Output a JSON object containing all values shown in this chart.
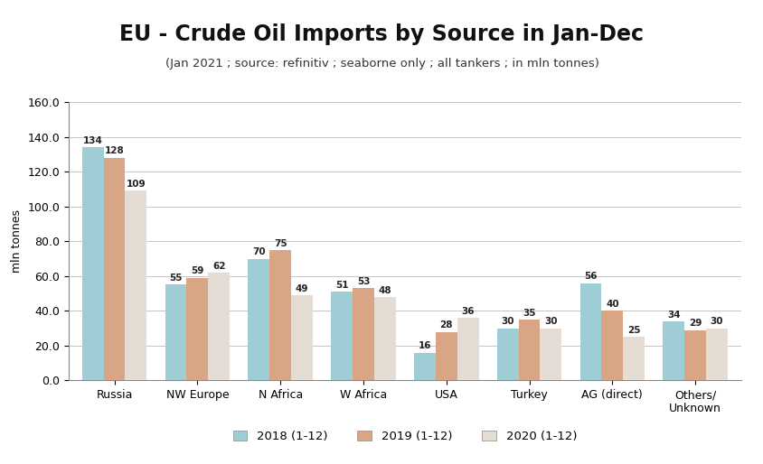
{
  "title": "EU - Crude Oil Imports by Source in Jan-Dec",
  "subtitle": "(Jan 2021 ; source: refinitiv ; seaborne only ; all tankers ; in mln tonnes)",
  "ylabel": "mln tonnes",
  "categories": [
    "Russia",
    "NW Europe",
    "N Africa",
    "W Africa",
    "USA",
    "Turkey",
    "AG (direct)",
    "Others/\nUnknown"
  ],
  "series": {
    "2018 (1-12)": [
      134,
      55,
      70,
      51,
      16,
      30,
      56,
      34
    ],
    "2019 (1-12)": [
      128,
      59,
      75,
      53,
      28,
      35,
      40,
      29
    ],
    "2020 (1-12)": [
      109,
      62,
      49,
      48,
      36,
      30,
      25,
      30
    ]
  },
  "colors": {
    "2018 (1-12)": "#9ecdd6",
    "2019 (1-12)": "#d8a585",
    "2020 (1-12)": "#e5ddd3"
  },
  "ylim": [
    0,
    160
  ],
  "yticks": [
    0.0,
    20.0,
    40.0,
    60.0,
    80.0,
    100.0,
    120.0,
    140.0,
    160.0
  ],
  "bar_width": 0.26,
  "background_color": "#ffffff",
  "grid_color": "#bbbbbb",
  "title_fontsize": 17,
  "subtitle_fontsize": 9.5,
  "label_fontsize": 9,
  "tick_fontsize": 9,
  "legend_fontsize": 9.5,
  "value_fontsize": 7.5
}
